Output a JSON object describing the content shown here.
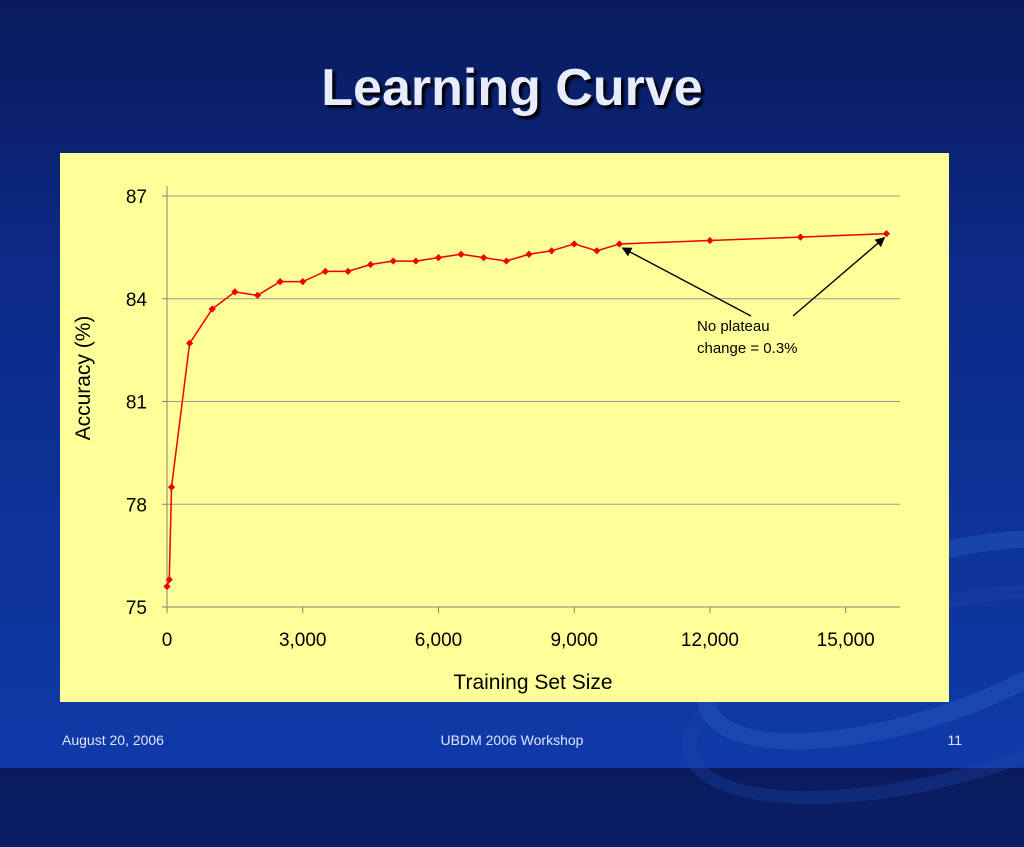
{
  "slide": {
    "title": "Learning Curve",
    "footer_date": "August 20, 2006",
    "footer_center": "UBDM 2006 Workshop",
    "page_number": "11"
  },
  "colors": {
    "background": "#0c2a88",
    "chart_bg": "#ffff99",
    "series": "#ee0000",
    "grid": "#999999"
  },
  "chart_data": {
    "type": "line",
    "xlabel": "Training Set Size",
    "ylabel": "Accuracy (%)",
    "xlim": [
      0,
      16200
    ],
    "ylim": [
      75,
      87
    ],
    "x_ticks": [
      "0",
      "3,000",
      "6,000",
      "9,000",
      "12,000",
      "15,000"
    ],
    "x_tick_values": [
      0,
      3000,
      6000,
      9000,
      12000,
      15000
    ],
    "y_ticks": [
      "75",
      "78",
      "81",
      "84",
      "87"
    ],
    "y_tick_values": [
      75,
      78,
      81,
      84,
      87
    ],
    "grid": "horizontal",
    "series": [
      {
        "x": [
          0,
          50,
          100,
          500,
          1000,
          1500,
          2000,
          2500,
          3000,
          3500,
          4000,
          4500,
          5000,
          5500,
          6000,
          6500,
          7000,
          7500,
          8000,
          8500,
          9000,
          9500,
          10000,
          12000,
          14000,
          15900
        ],
        "y": [
          75.6,
          75.8,
          78.5,
          82.7,
          83.7,
          84.2,
          84.1,
          84.5,
          84.5,
          84.8,
          84.8,
          85.0,
          85.1,
          85.1,
          85.2,
          85.3,
          85.2,
          85.1,
          85.3,
          85.4,
          85.6,
          85.4,
          85.6,
          85.7,
          85.8,
          85.9
        ]
      }
    ],
    "annotation": {
      "lines": [
        "No plateau",
        "change = 0.3%"
      ],
      "arrow_targets_x": [
        10000,
        15900
      ]
    }
  }
}
